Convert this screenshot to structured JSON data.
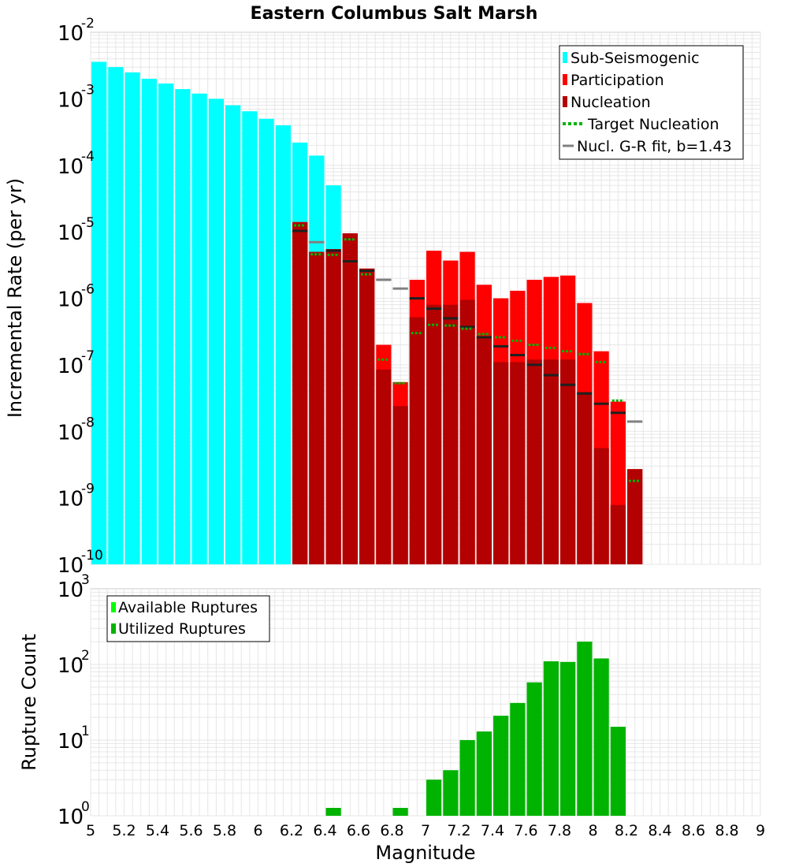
{
  "title": "Eastern Columbus Salt Marsh",
  "chart_data": [
    {
      "type": "bar",
      "name": "incremental-rate",
      "ylabel": "Incremental Rate (per yr)",
      "xlim": [
        5,
        9
      ],
      "ylim_log10": [
        -10,
        -2
      ],
      "y_exponents": [
        "-2",
        "-3",
        "-4",
        "-5",
        "-6",
        "-7",
        "-8",
        "-9",
        "-10"
      ],
      "legend_position": "top-right",
      "legend": {
        "sub_seismogenic": "Sub-Seismogenic",
        "participation": "Participation",
        "nucleation": "Nucleation",
        "target_nucleation": "Target Nucleation",
        "gr_fit": "Nucl. G-R fit, b=1.43"
      },
      "sub_seismogenic": {
        "x": [
          5.05,
          5.15,
          5.25,
          5.35,
          5.45,
          5.55,
          5.65,
          5.75,
          5.85,
          5.95,
          6.05,
          6.15,
          6.25,
          6.35,
          6.45
        ],
        "values": [
          0.0036,
          0.003,
          0.0025,
          0.002,
          0.0017,
          0.0014,
          0.0012,
          0.001,
          0.0008,
          0.00065,
          0.0005,
          0.0004,
          0.00022,
          0.00014,
          5e-05
        ]
      },
      "participation": {
        "x": [
          6.25,
          6.35,
          6.45,
          6.55,
          6.65,
          6.75,
          6.85,
          6.95,
          7.05,
          7.15,
          7.25,
          7.35,
          7.45,
          7.55,
          7.65,
          7.75,
          7.85,
          7.95,
          8.05,
          8.15,
          8.25
        ],
        "values": [
          1.4e-05,
          5e-06,
          5.5e-06,
          9.5e-06,
          2.8e-06,
          2e-07,
          5.5e-08,
          1.9e-06,
          5.2e-06,
          3.7e-06,
          5e-06,
          1.6e-06,
          1e-06,
          1.3e-06,
          1.9e-06,
          2.1e-06,
          2.2e-06,
          8.5e-07,
          1.6e-07,
          2.8e-08,
          2.7e-09
        ]
      },
      "nucleation": {
        "x": [
          6.25,
          6.35,
          6.45,
          6.55,
          6.65,
          6.75,
          6.85,
          6.95,
          7.05,
          7.15,
          7.25,
          7.35,
          7.45,
          7.55,
          7.65,
          7.75,
          7.85,
          7.95,
          8.05,
          8.15,
          8.25
        ],
        "values": [
          1.4e-05,
          5e-06,
          5.5e-06,
          9.5e-06,
          2.8e-06,
          8.5e-08,
          2.4e-08,
          5.2e-07,
          8e-07,
          8e-07,
          9.5e-07,
          2.6e-07,
          1.1e-07,
          1.1e-07,
          1.2e-07,
          1.2e-07,
          1.2e-07,
          3.9e-08,
          5.6e-09,
          7.8e-10,
          2.7e-09
        ]
      },
      "target_nucleation": {
        "x": [
          6.25,
          6.35,
          6.45,
          6.55,
          6.65,
          6.75,
          6.85,
          6.95,
          7.05,
          7.15,
          7.25,
          7.35,
          7.45,
          7.55,
          7.65,
          7.75,
          7.85,
          7.95,
          8.05,
          8.15,
          8.25
        ],
        "values": [
          1.25e-05,
          4.6e-06,
          4.5e-06,
          7.7e-06,
          2.3e-06,
          1.2e-07,
          5.3e-08,
          3e-07,
          4e-07,
          3.9e-07,
          3.5e-07,
          2.9e-07,
          2.6e-07,
          2.3e-07,
          2e-07,
          1.8e-07,
          1.6e-07,
          1.45e-07,
          1.1e-07,
          2.9e-08,
          1.8e-09
        ]
      },
      "gr_fit": {
        "x": [
          6.25,
          6.35,
          6.45,
          6.55,
          6.65,
          6.75,
          6.85,
          6.95,
          7.05,
          7.15,
          7.25,
          7.35,
          7.45,
          7.55,
          7.65,
          7.75,
          7.85,
          7.95,
          8.05,
          8.15,
          8.25
        ],
        "values": [
          1.03e-05,
          7e-06,
          5.2e-06,
          3.6e-06,
          2.6e-06,
          1.9e-06,
          1.4e-06,
          1e-06,
          7e-07,
          5e-07,
          3.7e-07,
          2.6e-07,
          1.9e-07,
          1.4e-07,
          1e-07,
          7e-08,
          5e-08,
          3.7e-08,
          2.6e-08,
          1.9e-08,
          1.4e-08
        ]
      }
    },
    {
      "type": "bar",
      "name": "rupture-count",
      "ylabel": "Rupture Count",
      "xlabel": "Magnitude",
      "xlim": [
        5,
        9
      ],
      "ylim_log10": [
        0,
        3
      ],
      "y_exponents": [
        "3",
        "2",
        "1",
        "0"
      ],
      "x_ticks": [
        "5",
        "5.2",
        "5.4",
        "5.6",
        "5.8",
        "6",
        "6.2",
        "6.4",
        "6.6",
        "6.8",
        "7",
        "7.2",
        "7.4",
        "7.6",
        "7.8",
        "8",
        "8.2",
        "8.4",
        "8.6",
        "8.8",
        "9"
      ],
      "legend_position": "top-left",
      "legend": {
        "available": "Available Ruptures",
        "utilized": "Utilized Ruptures"
      },
      "utilized": {
        "x": [
          6.45,
          6.85,
          7.05,
          7.15,
          7.25,
          7.35,
          7.45,
          7.55,
          7.65,
          7.75,
          7.85,
          7.95,
          8.05,
          8.15
        ],
        "values": [
          1,
          1,
          3,
          4,
          10,
          13,
          21,
          31,
          58,
          110,
          108,
          200,
          120,
          15
        ]
      }
    }
  ],
  "colors": {
    "sub_seismogenic": "#00ffff",
    "participation": "#ff0000",
    "nucleation": "#b30000",
    "target_nucleation": "#00b300",
    "gr_fit": "#808080",
    "gr_fit_overlay": "#202020",
    "available": "#00ff00",
    "utilized": "#00b300",
    "grid": "#e6e6e6"
  }
}
